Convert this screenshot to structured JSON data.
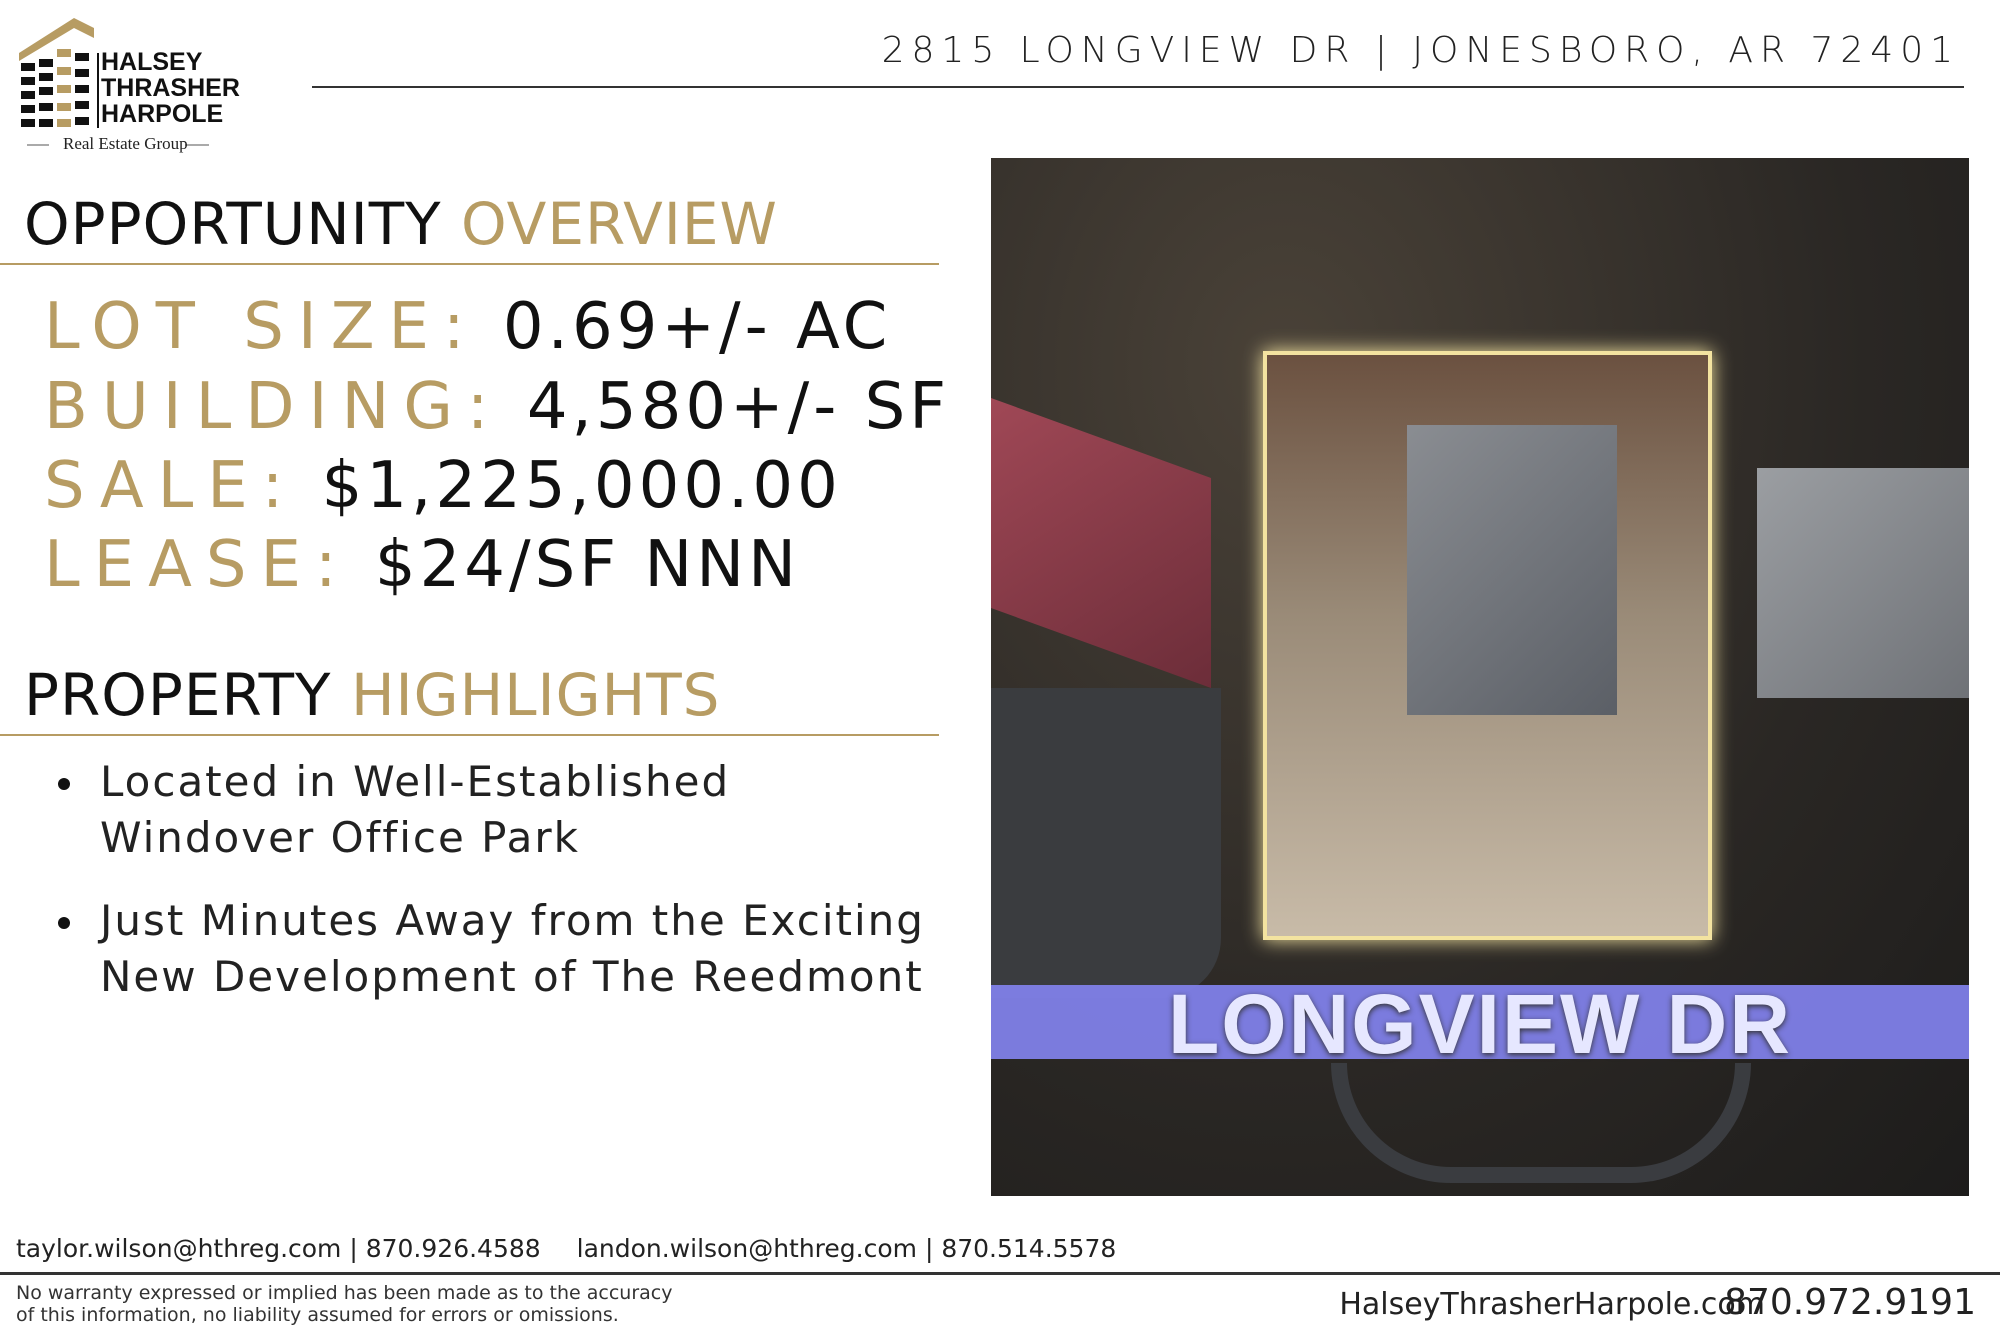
{
  "header": {
    "address": "2815 LONGVIEW DR | JONESBORO, AR 72401"
  },
  "logo": {
    "line1": "HALSEY",
    "line2": "THRASHER",
    "line3": "HARPOLE",
    "tagline": "Real Estate Group"
  },
  "overview": {
    "title_dark": "OPPORTUNITY",
    "title_gold": "OVERVIEW",
    "facts": [
      {
        "label": "LOT SIZE:",
        "value": "0.69+/- AC"
      },
      {
        "label": "BUILDING:",
        "value": "4,580+/- SF"
      },
      {
        "label": "SALE:",
        "value": "$1,225,000.00"
      },
      {
        "label": "LEASE:",
        "value": "$24/SF NNN"
      }
    ]
  },
  "highlights": {
    "title_dark": "PROPERTY",
    "title_gold": "HIGHLIGHTS",
    "items": [
      "Located in Well-Established Windover Office Park",
      "Just Minutes Away from the Exciting New Development of The Reedmont"
    ]
  },
  "photo": {
    "road_label": "LONGVIEW DR"
  },
  "footer": {
    "contact1": "taylor.wilson@hthreg.com | 870.926.4588",
    "contact2": "landon.wilson@hthreg.com | 870.514.5578",
    "disclaimer_line1": "No warranty expressed or implied has been made as to the accuracy",
    "disclaimer_line2": "of this information, no liability assumed for errors or omissions.",
    "website": "HalseyThrasherHarpole.com",
    "phone": "870.972.9191"
  },
  "colors": {
    "gold": "#b79c63",
    "road_highlight": "#7f80e8",
    "lot_outline": "#f3e3a0"
  }
}
